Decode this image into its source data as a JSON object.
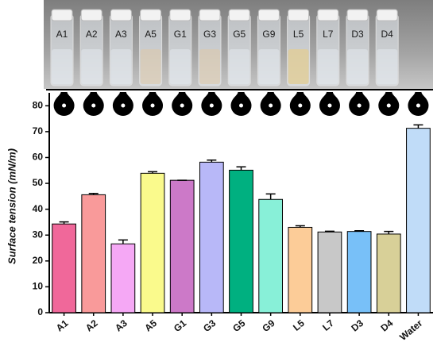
{
  "chart_data": {
    "type": "bar",
    "y_label": "Surface tension (mN/m)",
    "categories": [
      "A1",
      "A2",
      "A3",
      "A5",
      "G1",
      "G3",
      "G5",
      "G9",
      "L5",
      "L7",
      "D3",
      "D4",
      "Water"
    ],
    "values": [
      34.3,
      45.6,
      26.6,
      53.9,
      51.2,
      58.2,
      55.1,
      43.8,
      33.0,
      31.2,
      31.4,
      30.4,
      71.3
    ],
    "errors": [
      0.8,
      0.5,
      1.5,
      0.6,
      0,
      0.8,
      1.3,
      2.1,
      0.6,
      0.3,
      0.3,
      1.0,
      1.3
    ],
    "colors": [
      "#f0689a",
      "#f99a9a",
      "#f5a8f5",
      "#fafa8c",
      "#cc79c8",
      "#b8b8f8",
      "#00b080",
      "#88f0d8",
      "#fccc98",
      "#c8c8c8",
      "#78c0f8",
      "#d8d098",
      "#c0dcf8"
    ],
    "ylim": [
      0,
      85
    ],
    "yticks": [
      0,
      10,
      20,
      30,
      40,
      50,
      60,
      70,
      80
    ]
  },
  "photo": {
    "labels": [
      "A1",
      "A2",
      "A3",
      "A5",
      "G1",
      "G3",
      "G5",
      "G9",
      "L5",
      "L7",
      "D3",
      "D4"
    ]
  }
}
